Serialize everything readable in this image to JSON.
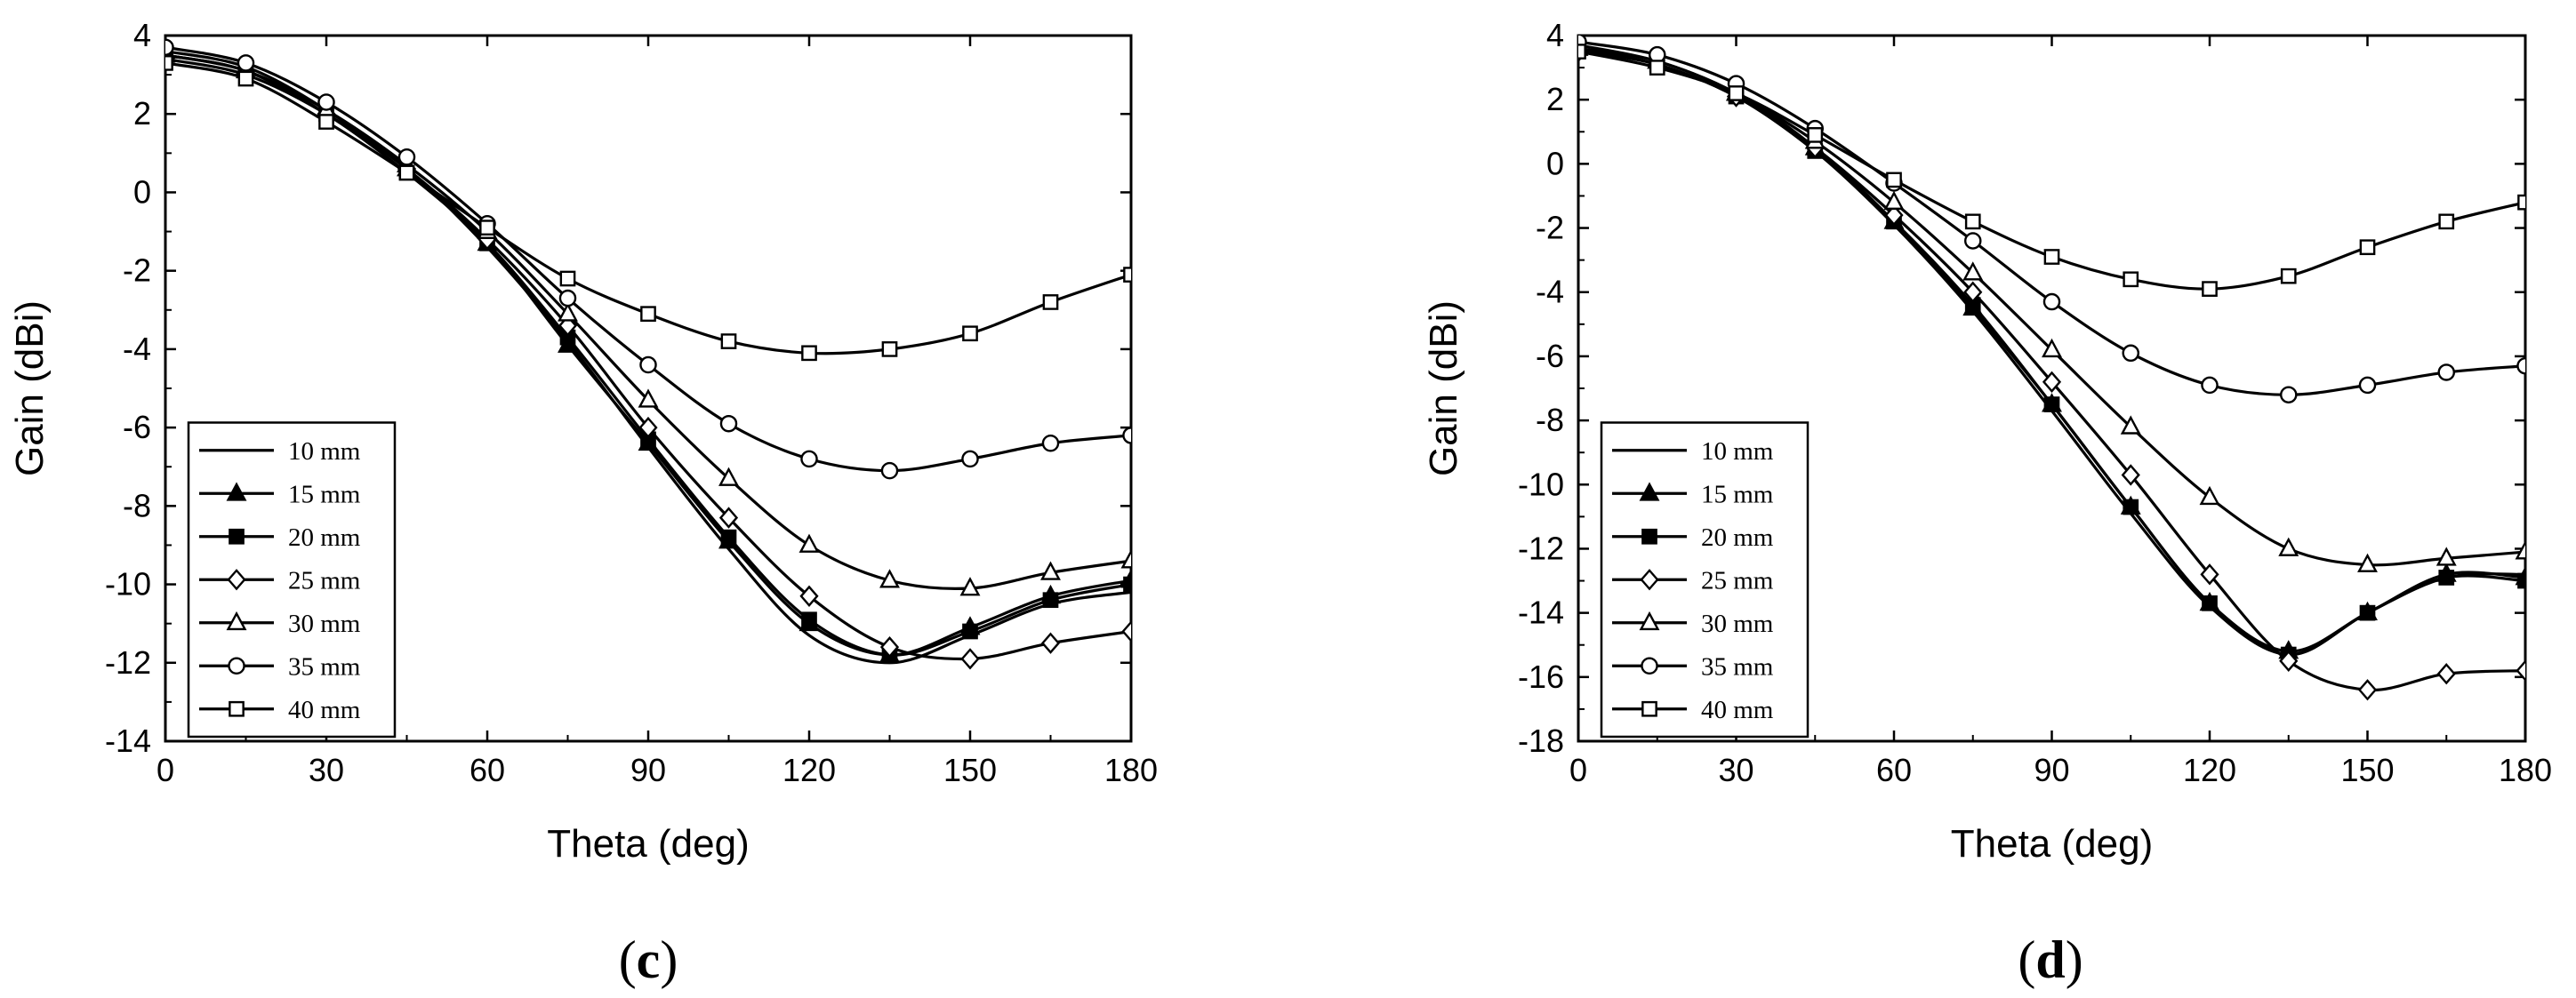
{
  "chart_data": [
    {
      "type": "line",
      "panel": "c",
      "caption": {
        "open": "(",
        "letter": "c",
        "close": ")"
      },
      "xlabel": "Theta (deg)",
      "ylabel": "Gain (dBi)",
      "xlim": [
        0,
        180
      ],
      "ylim": [
        -14,
        4
      ],
      "xticks": [
        0,
        30,
        60,
        90,
        120,
        150,
        180
      ],
      "yticks": [
        -14,
        -12,
        -10,
        -8,
        -6,
        -4,
        -2,
        0,
        2,
        4
      ],
      "legend_position": "bottom-left",
      "x": [
        0,
        15,
        30,
        45,
        60,
        75,
        90,
        105,
        120,
        135,
        150,
        165,
        180
      ],
      "series": [
        {
          "name": "10 mm",
          "marker": "none",
          "values": [
            3.5,
            3.1,
            2.0,
            0.6,
            -1.4,
            -3.8,
            -6.5,
            -9.1,
            -11.3,
            -12.0,
            -11.3,
            -10.5,
            -10.2
          ]
        },
        {
          "name": "15 mm",
          "marker": "triangle-filled",
          "values": [
            3.6,
            3.2,
            2.1,
            0.6,
            -1.3,
            -3.9,
            -6.4,
            -8.9,
            -11.0,
            -11.8,
            -11.1,
            -10.3,
            -9.9
          ]
        },
        {
          "name": "20 mm",
          "marker": "square-filled",
          "values": [
            3.5,
            3.1,
            2.0,
            0.5,
            -1.3,
            -3.7,
            -6.3,
            -8.8,
            -10.9,
            -11.8,
            -11.2,
            -10.4,
            -10.0
          ]
        },
        {
          "name": "25 mm",
          "marker": "diamond-open",
          "values": [
            3.4,
            3.0,
            2.0,
            0.6,
            -1.2,
            -3.4,
            -6.0,
            -8.3,
            -10.3,
            -11.6,
            -11.9,
            -11.5,
            -11.2
          ]
        },
        {
          "name": "30 mm",
          "marker": "triangle-open",
          "values": [
            3.5,
            3.1,
            2.1,
            0.7,
            -1.0,
            -3.1,
            -5.3,
            -7.3,
            -9.0,
            -9.9,
            -10.1,
            -9.7,
            -9.4
          ]
        },
        {
          "name": "35 mm",
          "marker": "circle-open",
          "values": [
            3.7,
            3.3,
            2.3,
            0.9,
            -0.8,
            -2.7,
            -4.4,
            -5.9,
            -6.8,
            -7.1,
            -6.8,
            -6.4,
            -6.2
          ]
        },
        {
          "name": "40 mm",
          "marker": "square-open",
          "values": [
            3.3,
            2.9,
            1.8,
            0.5,
            -0.9,
            -2.2,
            -3.1,
            -3.8,
            -4.1,
            -4.0,
            -3.6,
            -2.8,
            -2.1
          ]
        }
      ]
    },
    {
      "type": "line",
      "panel": "d",
      "caption": {
        "open": "(",
        "letter": "d",
        "close": ")"
      },
      "xlabel": "Theta (deg)",
      "ylabel": "Gain (dBi)",
      "xlim": [
        0,
        180
      ],
      "ylim": [
        -18,
        4
      ],
      "xticks": [
        0,
        30,
        60,
        90,
        120,
        150,
        180
      ],
      "yticks": [
        -18,
        -16,
        -14,
        -12,
        -10,
        -8,
        -6,
        -4,
        -2,
        0,
        2,
        4
      ],
      "legend_position": "bottom-left",
      "x": [
        0,
        15,
        30,
        45,
        60,
        75,
        90,
        105,
        120,
        135,
        150,
        165,
        180
      ],
      "series": [
        {
          "name": "10 mm",
          "marker": "none",
          "values": [
            3.6,
            3.1,
            2.1,
            0.4,
            -1.9,
            -4.6,
            -7.7,
            -10.9,
            -13.8,
            -15.3,
            -14.0,
            -12.9,
            -12.8
          ]
        },
        {
          "name": "15 mm",
          "marker": "triangle-filled",
          "values": [
            3.7,
            3.2,
            2.2,
            0.5,
            -1.8,
            -4.5,
            -7.5,
            -10.7,
            -13.7,
            -15.2,
            -14.0,
            -12.8,
            -12.9
          ]
        },
        {
          "name": "20 mm",
          "marker": "square-filled",
          "values": [
            3.6,
            3.1,
            2.1,
            0.4,
            -1.8,
            -4.4,
            -7.5,
            -10.7,
            -13.7,
            -15.3,
            -14.0,
            -12.9,
            -13.0
          ]
        },
        {
          "name": "25 mm",
          "marker": "diamond-open",
          "values": [
            3.5,
            3.1,
            2.1,
            0.5,
            -1.6,
            -4.0,
            -6.8,
            -9.7,
            -12.8,
            -15.5,
            -16.4,
            -15.9,
            -15.8
          ]
        },
        {
          "name": "30 mm",
          "marker": "triangle-open",
          "values": [
            3.6,
            3.2,
            2.2,
            0.7,
            -1.2,
            -3.4,
            -5.8,
            -8.2,
            -10.4,
            -12.0,
            -12.5,
            -12.3,
            -12.1
          ]
        },
        {
          "name": "35 mm",
          "marker": "circle-open",
          "values": [
            3.8,
            3.4,
            2.5,
            1.1,
            -0.6,
            -2.4,
            -4.3,
            -5.9,
            -6.9,
            -7.2,
            -6.9,
            -6.5,
            -6.3
          ]
        },
        {
          "name": "40 mm",
          "marker": "square-open",
          "values": [
            3.5,
            3.0,
            2.2,
            0.9,
            -0.5,
            -1.8,
            -2.9,
            -3.6,
            -3.9,
            -3.5,
            -2.6,
            -1.8,
            -1.2
          ]
        }
      ]
    }
  ]
}
